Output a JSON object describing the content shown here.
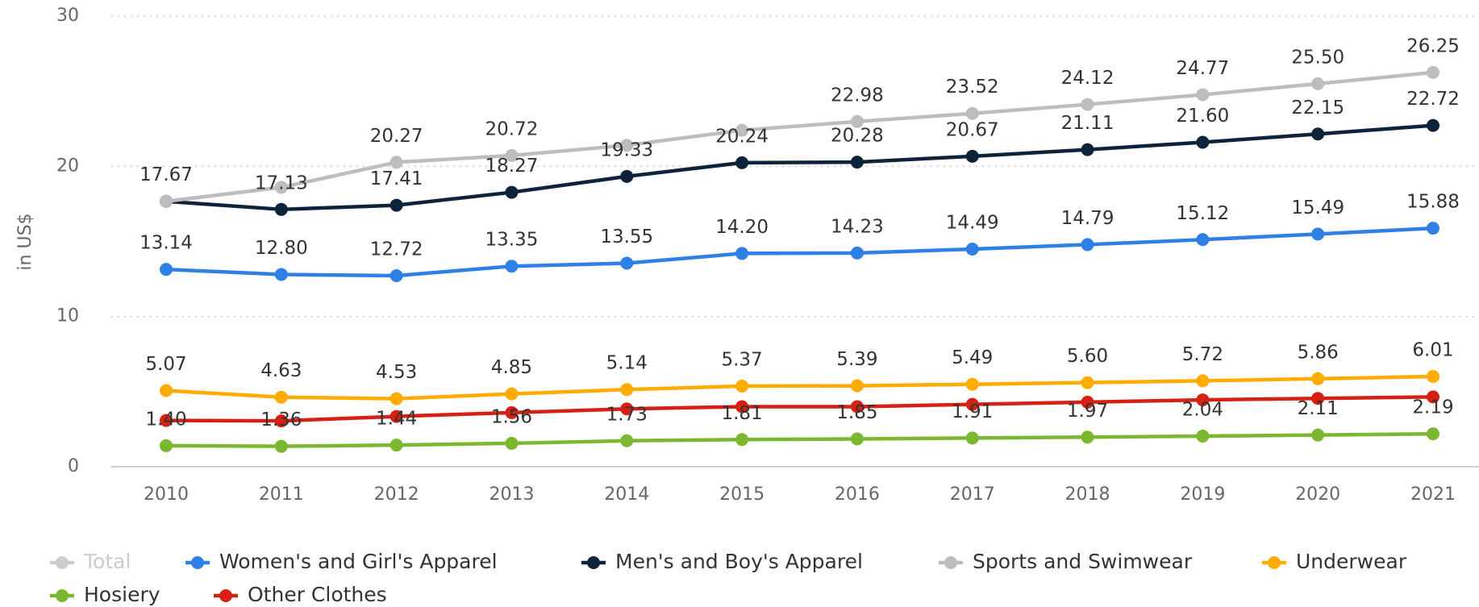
{
  "chart_data": {
    "type": "line",
    "y_label": "in US$",
    "categories": [
      "2010",
      "2011",
      "2012",
      "2013",
      "2014",
      "2015",
      "2016",
      "2017",
      "2018",
      "2019",
      "2020",
      "2021"
    ],
    "ylim": [
      0,
      30
    ],
    "yticks": [
      0,
      10,
      20,
      30
    ],
    "grid": true,
    "series": [
      {
        "name": "Total",
        "color": "#c8c8c8",
        "visible": false,
        "values": [
          null,
          null,
          null,
          null,
          null,
          null,
          null,
          null,
          null,
          null,
          null,
          null
        ]
      },
      {
        "name": "Women's and Girl's Apparel",
        "color": "#2f80e6",
        "visible": true,
        "values": [
          13.14,
          12.8,
          12.72,
          13.35,
          13.55,
          14.2,
          14.23,
          14.49,
          14.79,
          15.12,
          15.49,
          15.88
        ],
        "value_labels": [
          "13.14",
          "12.80",
          "12.72",
          "13.35",
          "13.55",
          "14.20",
          "14.23",
          "14.49",
          "14.79",
          "15.12",
          "15.49",
          "15.88"
        ]
      },
      {
        "name": "Men's and Boy's Apparel",
        "color": "#0d233a",
        "visible": true,
        "values": [
          17.67,
          17.13,
          17.41,
          18.27,
          19.33,
          20.24,
          20.28,
          20.67,
          21.11,
          21.6,
          22.15,
          22.72
        ],
        "value_labels": [
          null,
          "17.13",
          "17.41",
          "18.27",
          "19.33",
          "20.24",
          "20.28",
          "20.67",
          "21.11",
          "21.60",
          "22.15",
          "22.72"
        ]
      },
      {
        "name": "Sports and Swimwear",
        "color": "#bdbdbd",
        "visible": true,
        "values": [
          17.67,
          18.6,
          20.27,
          20.72,
          21.4,
          22.4,
          22.98,
          23.52,
          24.12,
          24.77,
          25.5,
          26.25
        ],
        "value_labels": [
          "17.67",
          null,
          "20.27",
          "20.72",
          null,
          null,
          "22.98",
          "23.52",
          "24.12",
          "24.77",
          "25.50",
          "26.25"
        ]
      },
      {
        "name": "Underwear",
        "color": "#ffab00",
        "visible": true,
        "values": [
          5.07,
          4.63,
          4.53,
          4.85,
          5.14,
          5.37,
          5.39,
          5.49,
          5.6,
          5.72,
          5.86,
          6.01
        ],
        "value_labels": [
          "5.07",
          "4.63",
          "4.53",
          "4.85",
          "5.14",
          "5.37",
          "5.39",
          "5.49",
          "5.60",
          "5.72",
          "5.86",
          "6.01"
        ]
      },
      {
        "name": "Hosiery",
        "color": "#7cb82f",
        "visible": true,
        "values": [
          1.4,
          1.36,
          1.44,
          1.56,
          1.73,
          1.81,
          1.85,
          1.91,
          1.97,
          2.04,
          2.11,
          2.19
        ],
        "value_labels": [
          "1.40",
          "1.36",
          "1.44",
          "1.56",
          "1.73",
          "1.81",
          "1.85",
          "1.91",
          "1.97",
          "2.04",
          "2.11",
          "2.19"
        ]
      },
      {
        "name": "Other Clothes",
        "color": "#d62013",
        "visible": true,
        "values": [
          3.08,
          3.05,
          3.35,
          3.6,
          3.85,
          4.0,
          4.0,
          4.15,
          4.3,
          4.45,
          4.55,
          4.65
        ],
        "value_labels": [
          null,
          null,
          null,
          null,
          null,
          null,
          null,
          null,
          null,
          null,
          null,
          null
        ]
      }
    ]
  }
}
